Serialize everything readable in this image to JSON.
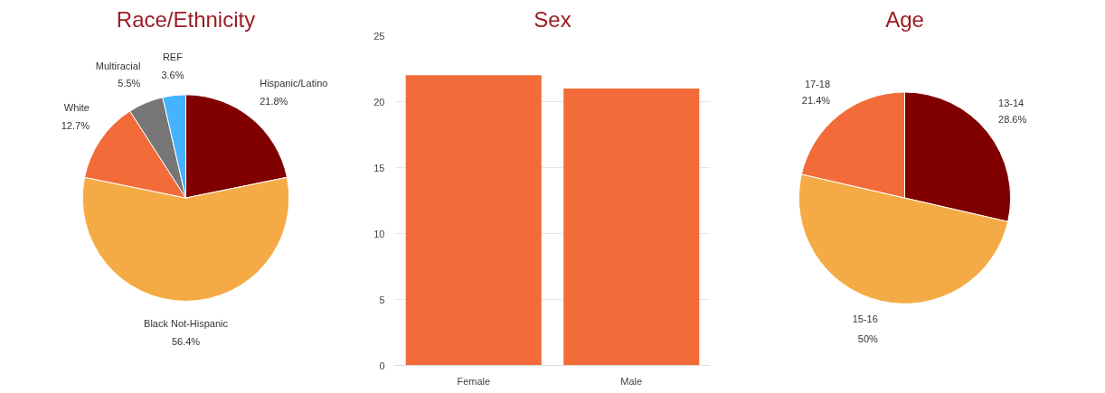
{
  "chart_data": [
    {
      "type": "pie",
      "title": "Race/Ethnicity",
      "categories": [
        "Hispanic/Latino",
        "Black Not-Hispanic",
        "White",
        "Multiracial",
        "REF"
      ],
      "values": [
        21.8,
        56.4,
        12.7,
        5.5,
        3.6
      ],
      "colors": [
        "#800000",
        "#f5ab45",
        "#f26b38",
        "#767676",
        "#45b3ff"
      ],
      "value_labels": [
        "21.8%",
        "56.4%",
        "12.7%",
        "5.5%",
        "3.6%"
      ]
    },
    {
      "type": "bar",
      "title": "Sex",
      "categories": [
        "Female",
        "Male"
      ],
      "values": [
        22,
        21
      ],
      "color": "#f26b38",
      "ylim": [
        0,
        25
      ],
      "yticks": [
        0,
        5,
        10,
        15,
        20,
        25
      ],
      "grid": "y"
    },
    {
      "type": "pie",
      "title": "Age",
      "categories": [
        "13-14",
        "15-16",
        "17-18"
      ],
      "values": [
        28.6,
        50,
        21.4
      ],
      "colors": [
        "#800000",
        "#f5ab45",
        "#f26b38"
      ],
      "value_labels": [
        "28.6%",
        "50%",
        "21.4%"
      ]
    }
  ]
}
